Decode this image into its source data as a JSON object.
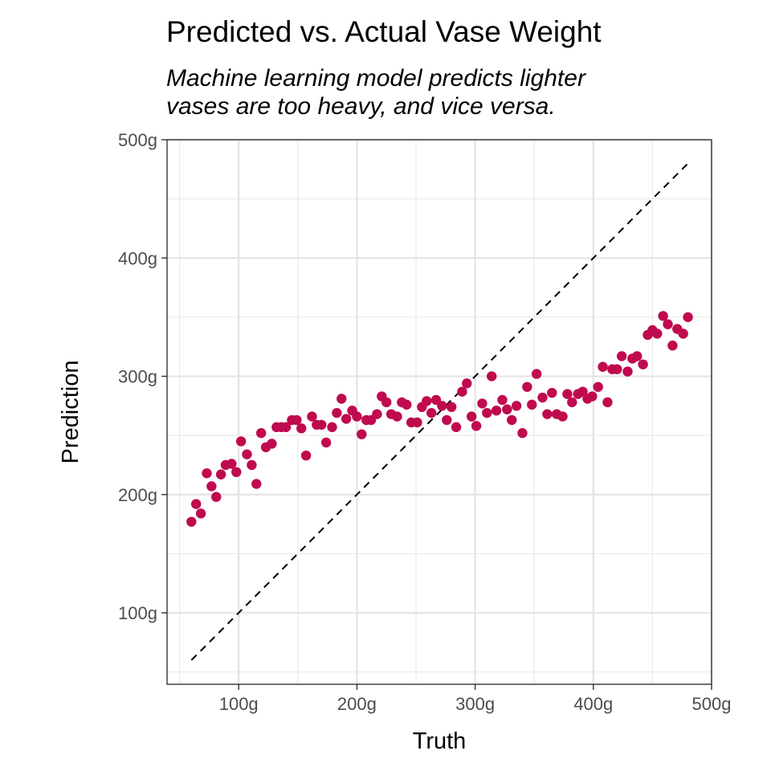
{
  "chart_data": {
    "type": "scatter",
    "title": "Predicted vs. Actual Vase Weight",
    "subtitle_lines": [
      "Machine learning model predicts lighter",
      "vases are too heavy, and vice versa."
    ],
    "xlabel": "Truth",
    "ylabel": "Prediction",
    "xlim": [
      39.4,
      500
    ],
    "ylim": [
      39.6,
      500
    ],
    "x_ticks": [
      100,
      200,
      300,
      400,
      500
    ],
    "x_tick_labels": [
      "100g",
      "200g",
      "300g",
      "400g",
      "500g"
    ],
    "y_ticks": [
      100,
      200,
      300,
      400,
      500
    ],
    "y_tick_labels": [
      "100g",
      "200g",
      "300g",
      "400g",
      "500g"
    ],
    "grid": true,
    "point_color": "#C00A4F",
    "reference_line": {
      "style": "dashed",
      "from": [
        60,
        60
      ],
      "to": [
        480,
        480
      ]
    },
    "x": [
      60,
      64,
      68,
      73,
      77,
      81,
      85,
      89,
      94,
      98,
      102,
      107,
      111,
      115,
      119,
      123,
      128,
      132,
      136,
      140,
      145,
      149,
      153,
      157,
      162,
      166,
      170,
      174,
      179,
      183,
      187,
      191,
      196,
      200,
      204,
      208,
      212,
      217,
      221,
      225,
      229,
      234,
      238,
      242,
      246,
      251,
      255,
      259,
      263,
      267,
      272,
      276,
      280,
      284,
      289,
      293,
      297,
      301,
      306,
      310,
      314,
      318,
      323,
      327,
      331,
      335,
      340,
      344,
      348,
      352,
      357,
      361,
      365,
      369,
      374,
      378,
      382,
      387,
      391,
      395,
      399,
      404,
      408,
      412,
      416,
      420,
      424,
      429,
      433,
      437,
      442,
      446,
      450,
      454,
      459,
      463,
      467,
      471,
      476,
      480
    ],
    "y": [
      177,
      192,
      184,
      218,
      207,
      198,
      217,
      225,
      226,
      219,
      245,
      234,
      225,
      209,
      252,
      240,
      243,
      257,
      257,
      257,
      263,
      263,
      256,
      233,
      266,
      259,
      259,
      244,
      257,
      269,
      281,
      264,
      271,
      266,
      251,
      263,
      263,
      268,
      283,
      278,
      268,
      266,
      278,
      276,
      261,
      261,
      274,
      279,
      269,
      280,
      275,
      263,
      274,
      257,
      287,
      294,
      266,
      258,
      277,
      269,
      300,
      271,
      280,
      272,
      263,
      275,
      252,
      291,
      276,
      302,
      282,
      268,
      286,
      268,
      266,
      285,
      278,
      285,
      287,
      281,
      283,
      291,
      308,
      278,
      306,
      306,
      317,
      304,
      315,
      317,
      310,
      335,
      339,
      336,
      351,
      344,
      326,
      340,
      336,
      350
    ]
  }
}
